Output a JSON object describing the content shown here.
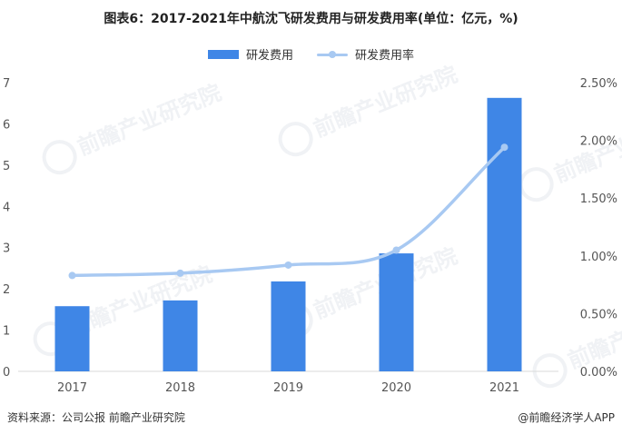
{
  "title": "图表6：2017-2021年中航沈飞研发费用与研发费用率(单位：亿元，%)",
  "legend": {
    "bar_label": "研发费用",
    "line_label": "研发费用率"
  },
  "watermark": {
    "text": "前瞻产业研究院"
  },
  "footer": {
    "source": "资料来源：公司公报 前瞻产业研究院",
    "brand": "@前瞻经济学人APP"
  },
  "colors": {
    "bar": "#3f86e6",
    "line": "#a8c9f2"
  },
  "chart_data": {
    "type": "bar",
    "title": "图表6：2017-2021年中航沈飞研发费用与研发费用率(单位：亿元，%)",
    "categories": [
      "2017",
      "2018",
      "2019",
      "2020",
      "2021"
    ],
    "series": [
      {
        "name": "研发费用",
        "type": "bar",
        "axis": "left",
        "values": [
          1.58,
          1.72,
          2.18,
          2.86,
          6.63
        ]
      },
      {
        "name": "研发费用率",
        "type": "line",
        "axis": "right",
        "smooth": true,
        "values": [
          0.83,
          0.85,
          0.92,
          1.05,
          1.94
        ]
      }
    ],
    "y_left": {
      "min": 0,
      "max": 7,
      "ticks": [
        "0",
        "1",
        "2",
        "3",
        "4",
        "5",
        "6",
        "7"
      ]
    },
    "y_right": {
      "min": 0,
      "max": 2.5,
      "ticks": [
        "0.00%",
        "0.50%",
        "1.00%",
        "1.50%",
        "2.00%",
        "2.50%"
      ]
    },
    "xlabel": "",
    "ylabel": "",
    "legend_position": "top-center",
    "grid": false
  }
}
